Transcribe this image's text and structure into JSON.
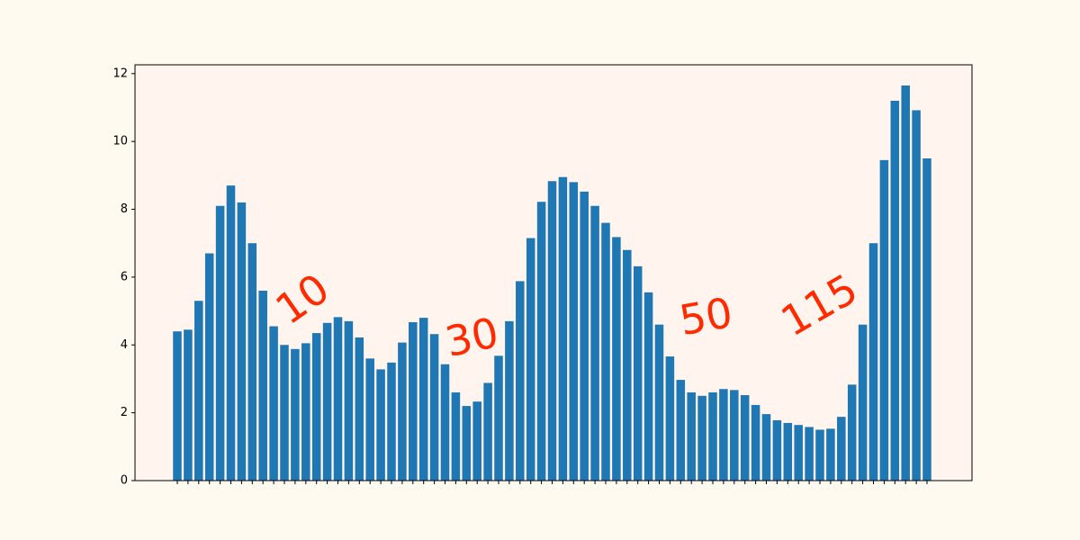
{
  "chart_data": {
    "type": "bar",
    "categories": [
      null,
      null,
      null,
      null,
      null,
      null,
      null,
      null,
      null,
      null,
      null,
      null,
      null,
      null,
      null,
      null,
      null,
      null,
      null,
      null,
      null,
      null,
      null,
      null,
      null,
      null,
      null,
      null,
      null,
      null,
      null,
      null,
      null,
      null,
      null,
      null,
      null,
      null,
      null,
      null,
      null,
      null,
      null,
      null,
      null,
      null,
      null,
      null,
      null,
      null,
      null,
      null,
      null,
      null,
      null,
      null,
      null,
      null,
      null,
      null,
      null,
      null,
      null,
      null,
      null,
      null,
      null,
      null,
      null,
      null,
      null
    ],
    "values": [
      4.4,
      4.45,
      5.3,
      6.7,
      8.1,
      8.7,
      8.2,
      7.0,
      5.6,
      4.55,
      4.0,
      3.88,
      4.05,
      4.35,
      4.65,
      4.82,
      4.7,
      4.22,
      3.6,
      3.28,
      3.48,
      4.07,
      4.67,
      4.8,
      4.32,
      3.43,
      2.6,
      2.2,
      2.33,
      2.88,
      3.68,
      4.7,
      5.88,
      7.15,
      8.22,
      8.83,
      8.95,
      8.8,
      8.52,
      8.1,
      7.6,
      7.18,
      6.8,
      6.32,
      5.55,
      4.6,
      3.66,
      2.97,
      2.6,
      2.5,
      2.6,
      2.7,
      2.67,
      2.52,
      2.23,
      1.96,
      1.78,
      1.7,
      1.64,
      1.58,
      1.5,
      1.53,
      1.88,
      2.83,
      4.6,
      7.0,
      9.45,
      11.2,
      11.65,
      10.92,
      9.5
    ],
    "color": "#1f77b4",
    "ylim": [
      0,
      12.26
    ],
    "yticks": [
      0,
      2,
      4,
      6,
      8,
      10,
      12
    ],
    "annotations": [
      "10",
      "30",
      "50",
      "115"
    ],
    "annotation_color": "#ff2a00"
  }
}
